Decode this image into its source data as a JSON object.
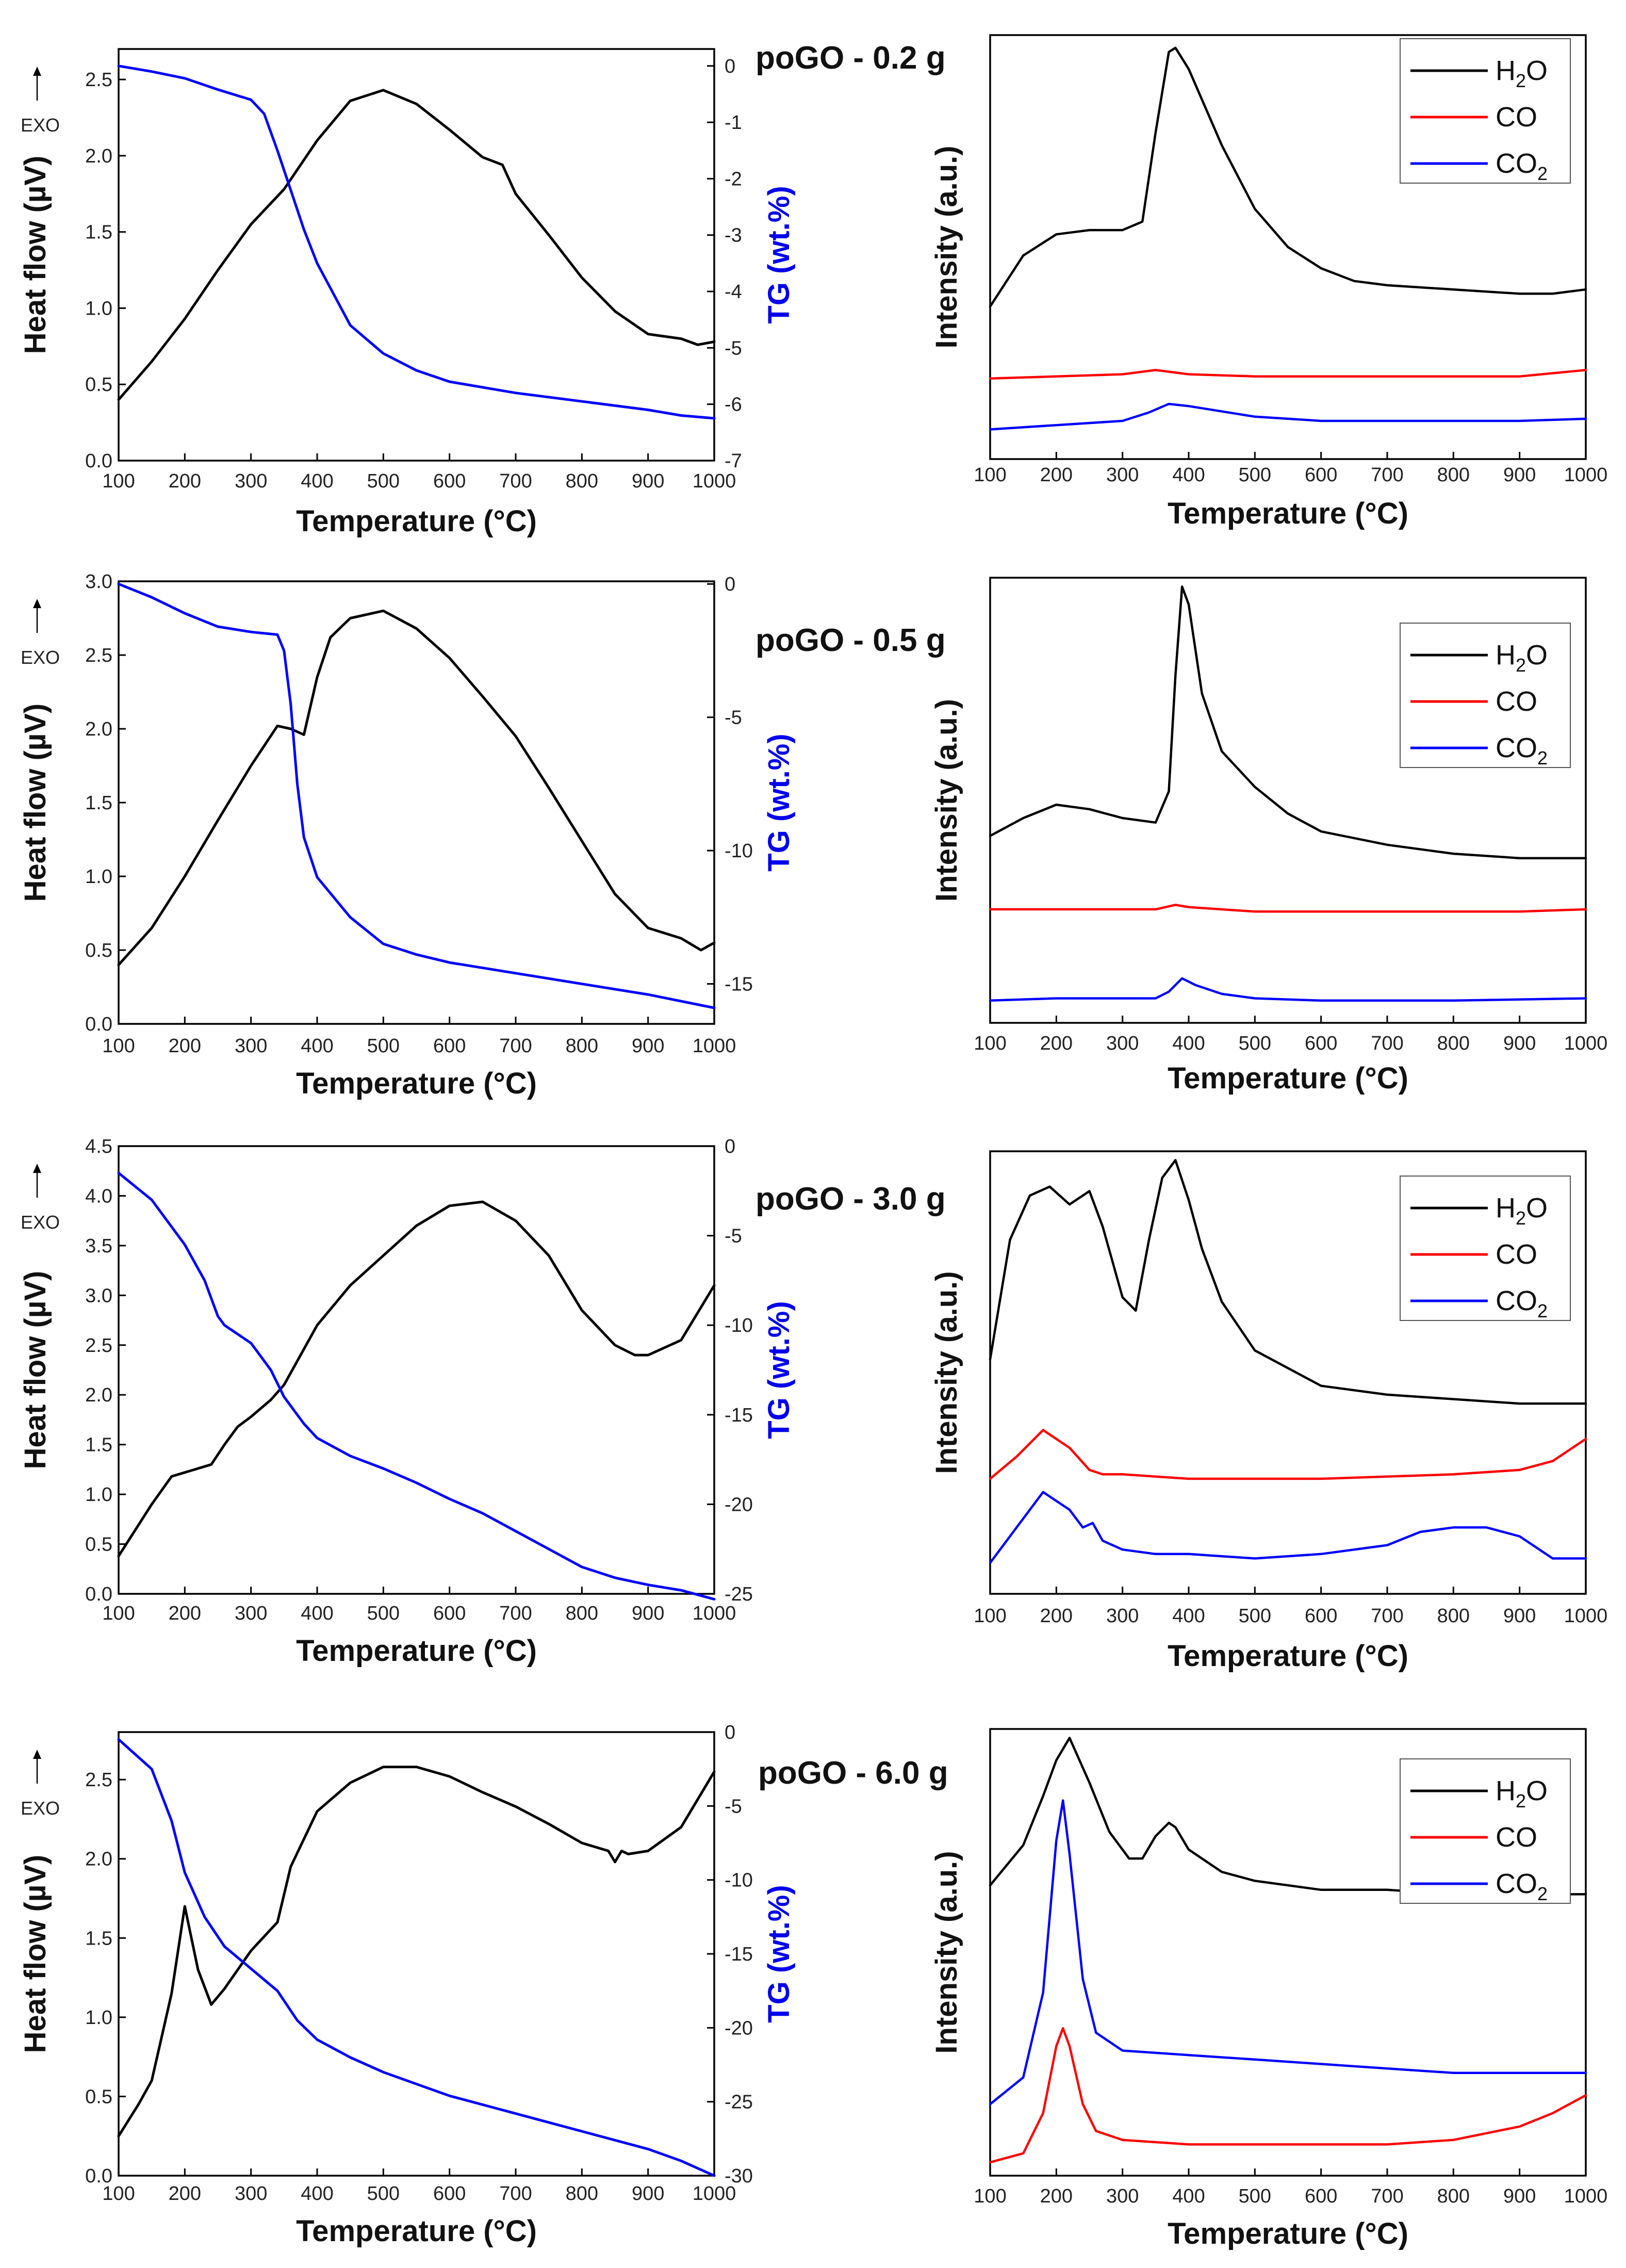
{
  "figure": {
    "x_label": "Temperature (°C)",
    "heat_label": "Heat flow (µV)",
    "tg_label": "TG (wt.%)",
    "ms_label": "Intensity (a.u.)",
    "exo_label": "EXO",
    "x_ticks": [
      "100",
      "200",
      "300",
      "400",
      "500",
      "600",
      "700",
      "800",
      "900",
      "1000"
    ],
    "colors": {
      "h2o": "#000000",
      "co": "#ff0000",
      "co2": "#0000ff",
      "tg": "#0000ff",
      "heat": "#000000"
    },
    "legend": {
      "h2o_base": "H",
      "h2o_sub": "2",
      "h2o_tail": "O",
      "co": "CO",
      "co2_base": "CO",
      "co2_sub": "2"
    }
  },
  "chart_data": [
    {
      "type": "line",
      "title": "poGO - 0.2 g",
      "xlabel": "Temperature (°C)",
      "xlim": [
        100,
        1000
      ],
      "heat_flow": {
        "ylabel": "Heat flow (µV)",
        "ylim": [
          0,
          2.7
        ],
        "ticks": [
          "0.0",
          "0.5",
          "1.0",
          "1.5",
          "2.0",
          "2.5"
        ],
        "x": [
          100,
          150,
          200,
          250,
          300,
          350,
          400,
          450,
          500,
          550,
          600,
          650,
          680,
          700,
          750,
          800,
          850,
          900,
          950,
          975,
          1000
        ],
        "y": [
          0.4,
          0.65,
          0.93,
          1.25,
          1.55,
          1.78,
          2.1,
          2.36,
          2.43,
          2.34,
          2.17,
          1.99,
          1.94,
          1.75,
          1.48,
          1.2,
          0.98,
          0.83,
          0.8,
          0.76,
          0.78
        ]
      },
      "tg": {
        "ylabel": "TG (wt.%)",
        "ylim": [
          -7,
          0.3
        ],
        "ticks": [
          "0",
          "-1",
          "-2",
          "-3",
          "-4",
          "-5",
          "-6",
          "-7"
        ],
        "x": [
          100,
          150,
          200,
          250,
          300,
          320,
          340,
          360,
          380,
          400,
          450,
          500,
          550,
          600,
          700,
          800,
          900,
          950,
          1000
        ],
        "y": [
          0,
          -0.1,
          -0.22,
          -0.42,
          -0.6,
          -0.85,
          -1.5,
          -2.2,
          -2.9,
          -3.5,
          -4.6,
          -5.1,
          -5.4,
          -5.6,
          -5.8,
          -5.95,
          -6.1,
          -6.2,
          -6.25
        ]
      },
      "ms": {
        "ylabel": "Intensity (a.u.)",
        "ylim": [
          0,
          100
        ],
        "series": [
          {
            "name": "H2O",
            "x": [
              100,
              150,
              200,
              250,
              300,
              330,
              350,
              370,
              380,
              400,
              450,
              500,
              550,
              600,
              650,
              700,
              800,
              900,
              950,
              1000
            ],
            "y": [
              36,
              48,
              53,
              54,
              54,
              56,
              77,
              96,
              97,
              92,
              74,
              59,
              50,
              45,
              42,
              41,
              40,
              39,
              39,
              40
            ]
          },
          {
            "name": "CO",
            "x": [
              100,
              300,
              350,
              400,
              500,
              700,
              900,
              1000
            ],
            "y": [
              19,
              20,
              21,
              20,
              19.5,
              19.5,
              19.5,
              21
            ]
          },
          {
            "name": "CO2",
            "x": [
              100,
              200,
              300,
              340,
              370,
              400,
              500,
              600,
              700,
              900,
              1000
            ],
            "y": [
              7,
              8,
              9,
              11,
              13,
              12.5,
              10,
              9,
              9,
              9,
              9.5
            ]
          }
        ]
      }
    },
    {
      "type": "line",
      "title": "poGO - 0.5 g",
      "xlabel": "Temperature (°C)",
      "xlim": [
        100,
        1000
      ],
      "heat_flow": {
        "ylabel": "Heat flow (µV)",
        "ylim": [
          0,
          3.0
        ],
        "ticks": [
          "0.0",
          "0.5",
          "1.0",
          "1.5",
          "2.0",
          "2.5",
          "3.0"
        ],
        "x": [
          100,
          150,
          200,
          250,
          300,
          340,
          360,
          380,
          400,
          420,
          450,
          500,
          550,
          600,
          650,
          700,
          750,
          800,
          850,
          900,
          950,
          980,
          1000
        ],
        "y": [
          0.4,
          0.65,
          1.0,
          1.38,
          1.75,
          2.02,
          2.0,
          1.96,
          2.35,
          2.62,
          2.75,
          2.8,
          2.68,
          2.48,
          2.22,
          1.95,
          1.6,
          1.24,
          0.88,
          0.65,
          0.58,
          0.5,
          0.55
        ]
      },
      "tg": {
        "ylabel": "TG (wt.%)",
        "ylim": [
          -16.5,
          0.1
        ],
        "ticks": [
          "0",
          "-5",
          "-10",
          "-15"
        ],
        "x": [
          100,
          150,
          200,
          250,
          300,
          340,
          350,
          360,
          370,
          380,
          400,
          450,
          500,
          550,
          600,
          700,
          800,
          900,
          1000
        ],
        "y": [
          0,
          -0.5,
          -1.1,
          -1.6,
          -1.8,
          -1.9,
          -2.5,
          -4.5,
          -7.5,
          -9.5,
          -11.0,
          -12.5,
          -13.5,
          -13.9,
          -14.2,
          -14.6,
          -15.0,
          -15.4,
          -15.9
        ]
      },
      "ms": {
        "ylabel": "Intensity (a.u.)",
        "ylim": [
          0,
          100
        ],
        "series": [
          {
            "name": "H2O",
            "x": [
              100,
              150,
              200,
              250,
              300,
              350,
              370,
              380,
              390,
              400,
              420,
              450,
              500,
              550,
              600,
              700,
              800,
              900,
              1000
            ],
            "y": [
              42,
              46,
              49,
              48,
              46,
              45,
              52,
              78,
              98,
              94,
              74,
              61,
              53,
              47,
              43,
              40,
              38,
              37,
              37
            ]
          },
          {
            "name": "CO",
            "x": [
              100,
              300,
              350,
              380,
              400,
              500,
              700,
              900,
              1000
            ],
            "y": [
              25.5,
              25.5,
              25.5,
              26.5,
              26,
              25,
              25,
              25,
              25.5
            ]
          },
          {
            "name": "CO2",
            "x": [
              100,
              200,
              300,
              350,
              370,
              390,
              410,
              450,
              500,
              600,
              800,
              1000
            ],
            "y": [
              5,
              5.5,
              5.5,
              5.5,
              7,
              10,
              8.5,
              6.5,
              5.5,
              5,
              5,
              5.5
            ]
          }
        ]
      }
    },
    {
      "type": "line",
      "title": "poGO - 3.0 g",
      "xlabel": "Temperature (°C)",
      "xlim": [
        100,
        1000
      ],
      "heat_flow": {
        "ylabel": "Heat flow (µV)",
        "ylim": [
          0,
          4.5
        ],
        "ticks": [
          "0.0",
          "0.5",
          "1.0",
          "1.5",
          "2.0",
          "2.5",
          "3.0",
          "3.5",
          "4.0",
          "4.5"
        ],
        "x": [
          100,
          150,
          180,
          200,
          240,
          260,
          280,
          300,
          330,
          350,
          400,
          450,
          500,
          550,
          600,
          650,
          700,
          750,
          800,
          850,
          880,
          900,
          950,
          1000
        ],
        "y": [
          0.38,
          0.9,
          1.18,
          1.22,
          1.3,
          1.5,
          1.68,
          1.78,
          1.95,
          2.1,
          2.7,
          3.1,
          3.4,
          3.7,
          3.9,
          3.94,
          3.75,
          3.4,
          2.85,
          2.5,
          2.4,
          2.4,
          2.55,
          3.1
        ]
      },
      "tg": {
        "ylabel": "TG (wt.%)",
        "ylim": [
          -25,
          0
        ],
        "ticks": [
          "0",
          "-5",
          "-10",
          "-15",
          "-20",
          "-25"
        ],
        "x": [
          100,
          150,
          200,
          230,
          250,
          260,
          300,
          330,
          350,
          380,
          400,
          450,
          500,
          550,
          600,
          650,
          700,
          750,
          800,
          850,
          900,
          950,
          1000
        ],
        "y": [
          -1.5,
          -3.0,
          -5.5,
          -7.5,
          -9.5,
          -10.0,
          -11.0,
          -12.5,
          -14.0,
          -15.5,
          -16.3,
          -17.3,
          -18.0,
          -18.8,
          -19.7,
          -20.5,
          -21.5,
          -22.5,
          -23.5,
          -24.1,
          -24.5,
          -24.8,
          -25.3
        ]
      },
      "ms": {
        "ylabel": "Intensity (a.u.)",
        "ylim": [
          0,
          100
        ],
        "series": [
          {
            "name": "H2O",
            "x": [
              100,
              130,
              160,
              190,
              220,
              250,
              270,
              300,
              320,
              340,
              360,
              380,
              400,
              420,
              450,
              500,
              550,
              600,
              700,
              800,
              900,
              1000
            ],
            "y": [
              53,
              80,
              90,
              92,
              88,
              91,
              83,
              67,
              64,
              80,
              94,
              98,
              89,
              78,
              66,
              55,
              51,
              47,
              45,
              44,
              43,
              43
            ]
          },
          {
            "name": "CO",
            "x": [
              100,
              140,
              180,
              220,
              250,
              270,
              300,
              400,
              600,
              800,
              900,
              950,
              1000
            ],
            "y": [
              26,
              31,
              37,
              33,
              28,
              27,
              27,
              26,
              26,
              27,
              28,
              30,
              35
            ]
          },
          {
            "name": "CO2",
            "x": [
              100,
              140,
              180,
              220,
              240,
              255,
              270,
              300,
              350,
              400,
              500,
              600,
              700,
              750,
              800,
              850,
              900,
              950,
              1000
            ],
            "y": [
              7,
              15,
              23,
              19,
              15,
              16,
              12,
              10,
              9,
              9,
              8,
              9,
              11,
              14,
              15,
              15,
              13,
              8,
              8
            ]
          }
        ]
      }
    },
    {
      "type": "line",
      "title": "poGO - 6.0 g",
      "xlabel": "Temperature (°C)",
      "xlim": [
        100,
        1000
      ],
      "heat_flow": {
        "ylabel": "Heat flow (µV)",
        "ylim": [
          0,
          2.8
        ],
        "ticks": [
          "0.0",
          "0.5",
          "1.0",
          "1.5",
          "2.0",
          "2.5"
        ],
        "x": [
          100,
          130,
          150,
          180,
          200,
          220,
          240,
          260,
          300,
          340,
          360,
          400,
          450,
          500,
          550,
          600,
          650,
          700,
          750,
          800,
          840,
          850,
          860,
          870,
          900,
          950,
          1000
        ],
        "y": [
          0.25,
          0.45,
          0.6,
          1.15,
          1.7,
          1.3,
          1.08,
          1.18,
          1.42,
          1.6,
          1.95,
          2.3,
          2.48,
          2.58,
          2.58,
          2.52,
          2.42,
          2.33,
          2.22,
          2.1,
          2.05,
          1.98,
          2.05,
          2.03,
          2.05,
          2.2,
          2.55
        ]
      },
      "tg": {
        "ylabel": "TG (wt.%)",
        "ylim": [
          -30,
          0
        ],
        "ticks": [
          "0",
          "-5",
          "-10",
          "-15",
          "-20",
          "-25",
          "-30"
        ],
        "x": [
          100,
          150,
          180,
          200,
          230,
          260,
          300,
          340,
          370,
          400,
          450,
          500,
          550,
          600,
          700,
          800,
          900,
          950,
          1000
        ],
        "y": [
          -0.5,
          -2.5,
          -6.0,
          -9.5,
          -12.5,
          -14.5,
          -16.0,
          -17.5,
          -19.5,
          -20.8,
          -22.0,
          -23.0,
          -23.8,
          -24.6,
          -25.8,
          -27.0,
          -28.2,
          -29.0,
          -30.0
        ]
      },
      "ms": {
        "ylabel": "Intensity (a.u.)",
        "ylim": [
          0,
          100
        ],
        "series": [
          {
            "name": "H2O",
            "x": [
              100,
              150,
              180,
              200,
              220,
              250,
              280,
              310,
              330,
              350,
              370,
              380,
              400,
              450,
              500,
              600,
              700,
              800,
              900,
              1000
            ],
            "y": [
              65,
              74,
              85,
              93,
              98,
              88,
              77,
              71,
              71,
              76,
              79,
              78,
              73,
              68,
              66,
              64,
              64,
              63,
              63,
              63
            ]
          },
          {
            "name": "CO",
            "x": [
              100,
              150,
              180,
              200,
              210,
              220,
              240,
              260,
              300,
              400,
              500,
              600,
              700,
              800,
              900,
              950,
              1000
            ],
            "y": [
              3,
              5,
              14,
              29,
              33,
              29,
              16,
              10,
              8,
              7,
              7,
              7,
              7,
              8,
              11,
              14,
              18
            ]
          },
          {
            "name": "CO2",
            "x": [
              100,
              150,
              180,
              200,
              210,
              220,
              240,
              260,
              300,
              400,
              500,
              600,
              700,
              800,
              900,
              1000
            ],
            "y": [
              16,
              22,
              41,
              75,
              84,
              72,
              44,
              32,
              28,
              27,
              26,
              25,
              24,
              23,
              23,
              23
            ]
          }
        ]
      }
    }
  ]
}
